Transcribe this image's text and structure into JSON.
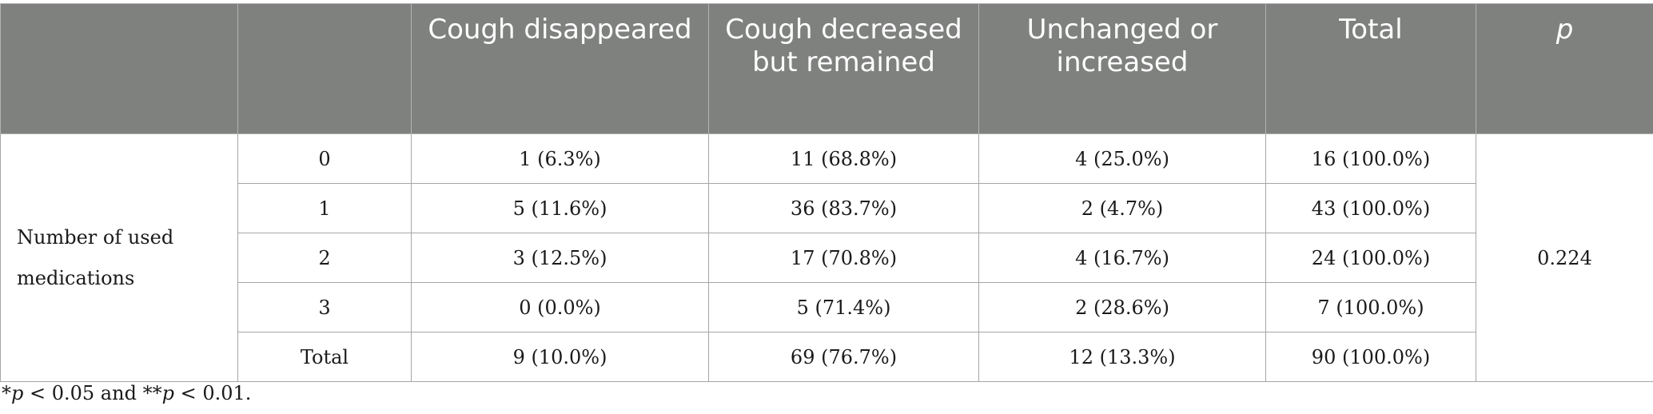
{
  "table": {
    "headers": [
      "",
      "",
      "Cough disappeared",
      "Cough decreased but remained",
      "Unchanged or increased",
      "Total",
      "p"
    ],
    "row_group_label": "Number of used medications",
    "rows": [
      {
        "level": "0",
        "disappeared": "1 (6.3%)",
        "decreased": "11 (68.8%)",
        "unchanged": "4 (25.0%)",
        "total": "16 (100.0%)"
      },
      {
        "level": "1",
        "disappeared": "5 (11.6%)",
        "decreased": "36 (83.7%)",
        "unchanged": "2 (4.7%)",
        "total": "43 (100.0%)"
      },
      {
        "level": "2",
        "disappeared": "3 (12.5%)",
        "decreased": "17 (70.8%)",
        "unchanged": "4 (16.7%)",
        "total": "24 (100.0%)"
      },
      {
        "level": "3",
        "disappeared": "0 (0.0%)",
        "decreased": "5 (71.4%)",
        "unchanged": "2 (28.6%)",
        "total": "7 (100.0%)"
      },
      {
        "level": "Total",
        "disappeared": "9 (10.0%)",
        "decreased": "69 (76.7%)",
        "unchanged": "12 (13.3%)",
        "total": "90 (100.0%)"
      }
    ],
    "p_value": "0.224"
  },
  "footnote": {
    "star1": "*",
    "p1": "p",
    "text1": " < 0.05 and **",
    "p2": "p",
    "text2": " < 0.01."
  },
  "colors": {
    "header_bg": "#7f817f",
    "header_text": "#ffffff",
    "border": "#a6a6a6"
  }
}
